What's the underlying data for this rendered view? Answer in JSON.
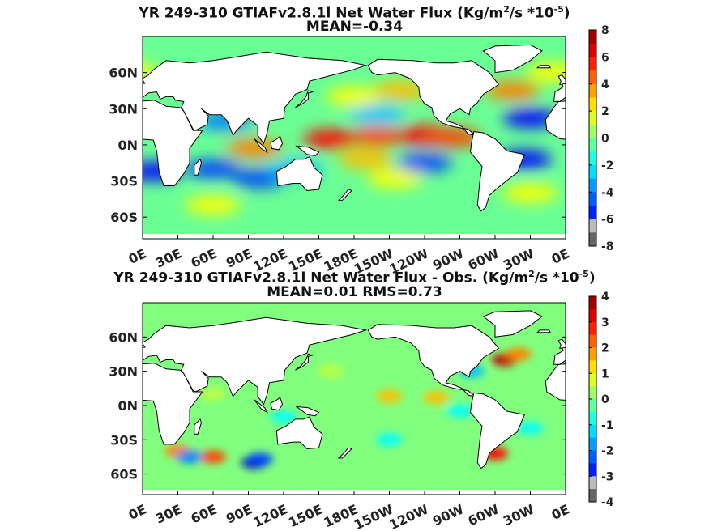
{
  "chart_data": [
    {
      "type": "heatmap",
      "title_prefix": "YR 249-310 GTIAFv2.8.1l  Net Water Flux (Kg/m",
      "title_sup1": "2",
      "title_mid": "/s *10",
      "title_sup2": "-5",
      "title_suffix": ")",
      "subtitle": "MEAN=-0.34",
      "mean": -0.34,
      "x_ticks": [
        "0E",
        "30E",
        "60E",
        "90E",
        "120E",
        "150E",
        "180E",
        "150W",
        "120W",
        "90W",
        "60W",
        "30W",
        "0E"
      ],
      "y_ticks": [
        "60N",
        "30N",
        "0N",
        "30S",
        "60S"
      ],
      "colorbar_ticks": [
        "8",
        "6",
        "4",
        "2",
        "0",
        "-2",
        "-4",
        "-6",
        "-8"
      ],
      "colorbar_range": [
        -8,
        8
      ],
      "colormap": "jet",
      "features": [
        {
          "lon": 160,
          "lat": 5,
          "value": 6
        },
        {
          "lon": 200,
          "lat": 7,
          "value": 5
        },
        {
          "lon": 240,
          "lat": 8,
          "value": 6
        },
        {
          "lon": 265,
          "lat": 6,
          "value": 5
        },
        {
          "lon": 95,
          "lat": -3,
          "value": 4
        },
        {
          "lon": 190,
          "lat": -12,
          "value": 3
        },
        {
          "lon": 215,
          "lat": -28,
          "value": 2
        },
        {
          "lon": 180,
          "lat": 40,
          "value": 2
        },
        {
          "lon": 220,
          "lat": 45,
          "value": 3
        },
        {
          "lon": 315,
          "lat": 45,
          "value": 4
        },
        {
          "lon": 350,
          "lat": 60,
          "value": 2
        },
        {
          "lon": 60,
          "lat": -50,
          "value": 2
        },
        {
          "lon": 330,
          "lat": -40,
          "value": 2
        },
        {
          "lon": 10,
          "lat": -22,
          "value": -6
        },
        {
          "lon": 60,
          "lat": -20,
          "value": -5
        },
        {
          "lon": 100,
          "lat": -28,
          "value": -5
        },
        {
          "lon": 130,
          "lat": -20,
          "value": -3
        },
        {
          "lon": 240,
          "lat": -15,
          "value": -5
        },
        {
          "lon": 200,
          "lat": 25,
          "value": -3
        },
        {
          "lon": 325,
          "lat": -12,
          "value": -6
        },
        {
          "lon": 330,
          "lat": 22,
          "value": -6
        },
        {
          "lon": 70,
          "lat": 20,
          "value": -4
        }
      ]
    },
    {
      "type": "heatmap",
      "title_prefix": "YR 249-310 GTIAFv2.8.1l  Net Water Flux - Obs. (Kg/m",
      "title_sup1": "2",
      "title_mid": "/s *10",
      "title_sup2": "-5",
      "title_suffix": ")",
      "subtitle": "MEAN=0.01 RMS=0.73",
      "mean": 0.01,
      "rms": 0.73,
      "x_ticks": [
        "0E",
        "30E",
        "60E",
        "90E",
        "120E",
        "150E",
        "180E",
        "150W",
        "120W",
        "90W",
        "60W",
        "30W",
        "0E"
      ],
      "y_ticks": [
        "60N",
        "30N",
        "0N",
        "30S",
        "60S"
      ],
      "colorbar_ticks": [
        "4",
        "3",
        "2",
        "1",
        "0",
        "-1",
        "-2",
        "-3",
        "-4"
      ],
      "colorbar_range": [
        -4,
        4
      ],
      "colormap": "jet",
      "features": [
        {
          "lon": 308,
          "lat": 40,
          "value": 3.5
        },
        {
          "lon": 320,
          "lat": 45,
          "value": 2
        },
        {
          "lon": 300,
          "lat": -42,
          "value": 3
        },
        {
          "lon": 30,
          "lat": -40,
          "value": 2
        },
        {
          "lon": 60,
          "lat": -45,
          "value": 2.5
        },
        {
          "lon": 210,
          "lat": 8,
          "value": 1.5
        },
        {
          "lon": 250,
          "lat": 7,
          "value": 1.5
        },
        {
          "lon": 270,
          "lat": -5,
          "value": -1
        },
        {
          "lon": 40,
          "lat": -45,
          "value": -2
        },
        {
          "lon": 95,
          "lat": -50,
          "value": -3.5
        },
        {
          "lon": 100,
          "lat": -47,
          "value": -2.5
        },
        {
          "lon": 280,
          "lat": 30,
          "value": -1.5
        },
        {
          "lon": 330,
          "lat": -20,
          "value": -1
        },
        {
          "lon": 120,
          "lat": -10,
          "value": -1
        },
        {
          "lon": 210,
          "lat": -30,
          "value": -1
        },
        {
          "lon": 60,
          "lat": 10,
          "value": 0.5
        },
        {
          "lon": 160,
          "lat": 30,
          "value": 0.5
        }
      ]
    }
  ]
}
